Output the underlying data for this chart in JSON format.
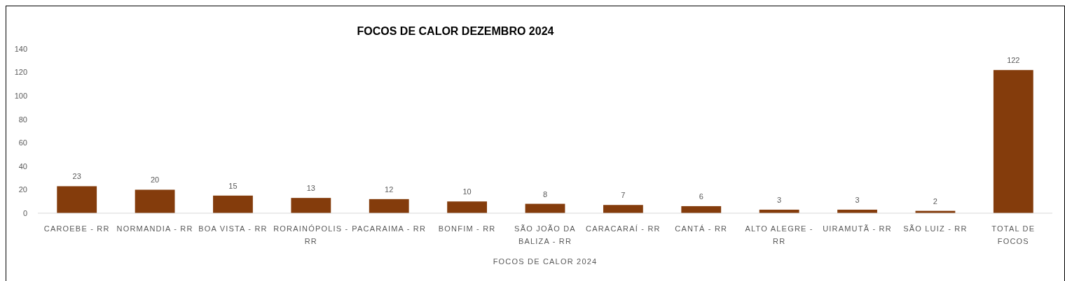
{
  "chart_data": {
    "type": "bar",
    "title": "FOCOS DE CALOR DEZEMBRO 2024",
    "xlabel": "FOCOS DE CALOR 2024",
    "categories": [
      "CAROEBE - RR",
      "NORMANDIA - RR",
      "BOA VISTA - RR",
      "RORAINÓPOLIS - RR",
      "PACARAIMA - RR",
      "BONFIM - RR",
      "SÃO JOÃO DA BALIZA - RR",
      "CARACARAÍ - RR",
      "CANTÁ - RR",
      "ALTO ALEGRE - RR",
      "UIRAMUTÃ - RR",
      "SÃO LUIZ - RR",
      "TOTAL DE FOCOS"
    ],
    "values": [
      23,
      20,
      15,
      13,
      12,
      10,
      8,
      7,
      6,
      3,
      3,
      2,
      122
    ],
    "color": "#843c0c",
    "ylim": [
      0,
      140
    ],
    "yticks": [
      0,
      20,
      40,
      60,
      80,
      100,
      120,
      140
    ],
    "data_labels": true
  }
}
